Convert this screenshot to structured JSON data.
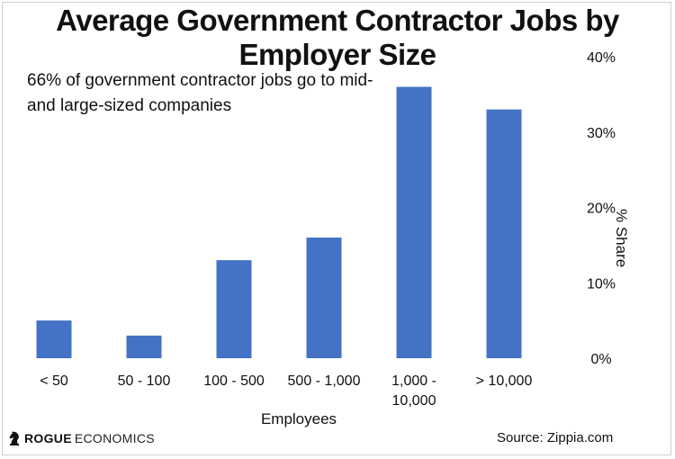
{
  "chart_data": {
    "type": "bar",
    "title": "Average Government Contractor Jobs by Employer Size",
    "annotation_lines": [
      "66% of government contractor jobs go to mid-",
      "and large-sized companies"
    ],
    "xlabel": "Employees",
    "ylabel": "% Share",
    "categories": [
      [
        "< 50"
      ],
      [
        "50 - 100"
      ],
      [
        "100 - 500"
      ],
      [
        "500 - 1,000"
      ],
      [
        "1,000 -",
        "10,000"
      ],
      [
        "> 10,000"
      ]
    ],
    "values": [
      5,
      3,
      13,
      16,
      36,
      33
    ],
    "ylim": [
      0,
      40
    ],
    "yticks": [
      0,
      10,
      20,
      30,
      40
    ],
    "ytick_labels": [
      "0%",
      "10%",
      "20%",
      "30%",
      "40%"
    ],
    "y_axis_side": "right",
    "grid": false,
    "bar_color": "#4472C4"
  },
  "footer": {
    "brand_bold": "ROGUE",
    "brand_rest": "ECONOMICS",
    "source": "Source: Zippia.com"
  }
}
